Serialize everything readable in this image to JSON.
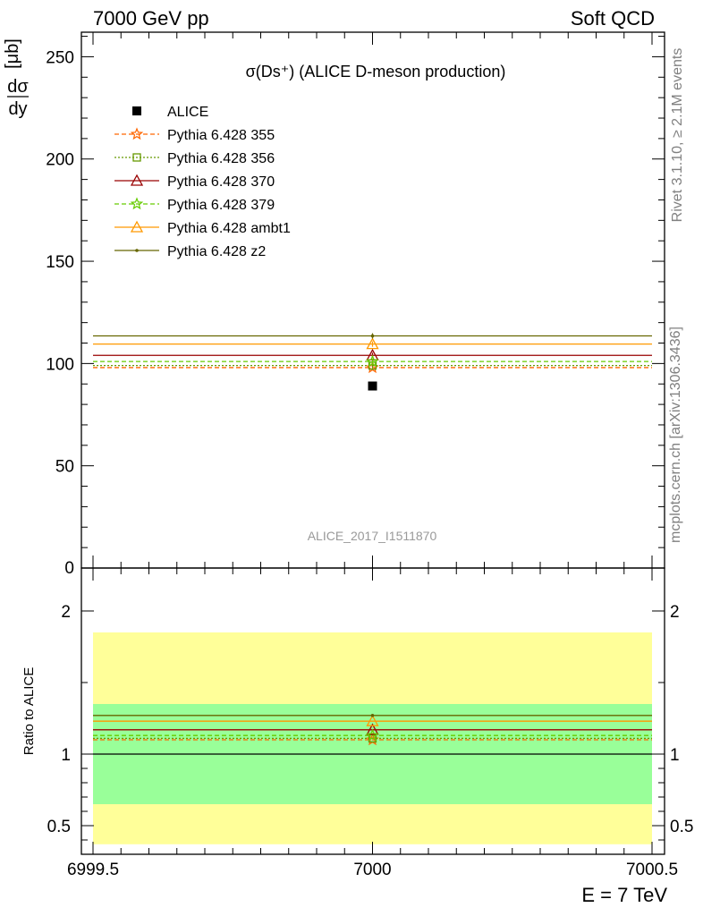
{
  "header": {
    "left": "7000 GeV pp",
    "right": "Soft QCD"
  },
  "side_labels": {
    "rivet": "Rivet 3.1.10, ≥ 2.1M events",
    "mcplots": "mcplots.cern.ch [arXiv:1306.3436]"
  },
  "chart_data": [
    {
      "type": "scatter",
      "title": "σ(Ds⁺) (ALICE D-meson production)",
      "ylabel": "dσ/dy [μb]",
      "ylabel_num": "dσ",
      "ylabel_den": "dy",
      "ylabel_unit": "[μb]",
      "xlim": [
        6999.5,
        7000.5
      ],
      "ylim": [
        0,
        262
      ],
      "yticks": [
        "50",
        "100",
        "150",
        "200",
        "250"
      ],
      "ytick_values": [
        50,
        100,
        150,
        200,
        250
      ],
      "bottom_tick": "0",
      "watermark": "ALICE_2017_I1511870",
      "data": {
        "name": "ALICE",
        "x": 7000,
        "y": 89,
        "color": "#000000"
      },
      "series": [
        {
          "name": "Pythia 6.428 355",
          "y": 98,
          "color": "#ff6600",
          "dash": "5,3",
          "marker": "star"
        },
        {
          "name": "Pythia 6.428 356",
          "y": 99,
          "color": "#669900",
          "dash": "2,2",
          "marker": "square"
        },
        {
          "name": "Pythia 6.428 370",
          "y": 104,
          "color": "#990000",
          "dash": "",
          "marker": "triangle"
        },
        {
          "name": "Pythia 6.428 379",
          "y": 101,
          "color": "#66cc00",
          "dash": "5,3",
          "marker": "star"
        },
        {
          "name": "Pythia 6.428 ambt1",
          "y": 109.5,
          "color": "#ff9900",
          "dash": "",
          "marker": "triangle"
        },
        {
          "name": "Pythia 6.428 z2",
          "y": 113.5,
          "color": "#666600",
          "dash": "",
          "marker": "dot"
        }
      ],
      "legend_position": "top-left"
    },
    {
      "type": "line",
      "ylabel": "Ratio to ALICE",
      "xlim": [
        6999.5,
        7000.5
      ],
      "ylim": [
        0.3,
        2.3
      ],
      "yticks": [
        "0.5",
        "1",
        "2"
      ],
      "ytick_values": [
        0.5,
        1,
        2
      ],
      "xticks": [
        "6999.5",
        "7000",
        "7000.5"
      ],
      "xtick_values": [
        6999.5,
        7000,
        7000.5
      ],
      "xlabel": "E = 7 TeV",
      "bands": [
        {
          "low": 0.37,
          "high": 1.85,
          "color": "#ffff99"
        },
        {
          "low": 0.65,
          "high": 1.35,
          "color": "#99ff99"
        }
      ],
      "ratios": [
        1.1,
        1.11,
        1.17,
        1.13,
        1.23,
        1.27
      ]
    }
  ]
}
